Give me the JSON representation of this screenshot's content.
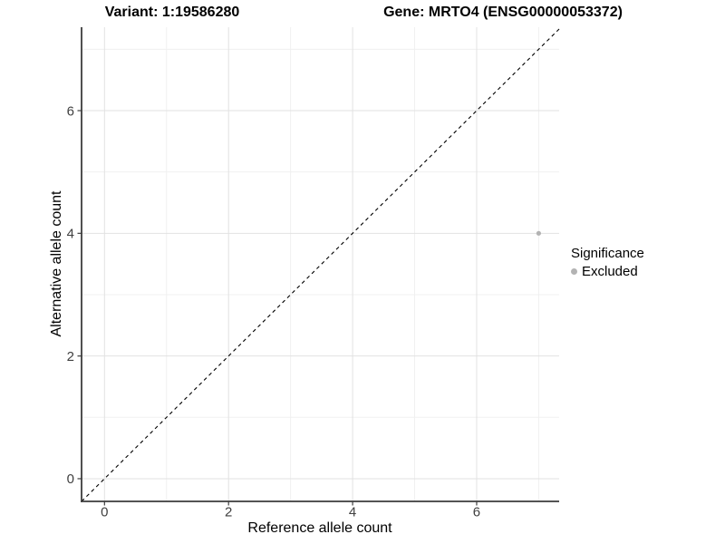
{
  "figure": {
    "title_left": "Variant: 1:19586280",
    "title_right": "Gene: MRTO4 (ENSG00000053372)"
  },
  "chart_data": {
    "type": "scatter",
    "title": "Variant: 1:19586280   Gene: MRTO4 (ENSG00000053372)",
    "xlabel": "Reference allele count",
    "ylabel": "Alternative allele count",
    "xlim": [
      -0.37,
      7.33
    ],
    "ylim": [
      -0.37,
      7.36
    ],
    "x_ticks": [
      0,
      2,
      4,
      6
    ],
    "y_ticks": [
      0,
      2,
      4,
      6
    ],
    "x_minor_ticks": [
      1,
      3,
      5,
      7
    ],
    "y_minor_ticks": [
      1,
      3,
      5,
      7
    ],
    "grid": "major+minor",
    "identity_line": {
      "type": "abline",
      "slope": 1,
      "intercept": 0,
      "style": "dashed",
      "color": "#000000"
    },
    "series": [
      {
        "name": "Excluded",
        "color": "#b3b3b3",
        "points": [
          {
            "x": 7,
            "y": 4
          }
        ]
      }
    ],
    "legend": {
      "title": "Significance",
      "position": "right",
      "items": [
        {
          "label": "Excluded",
          "color": "#b3b3b3"
        }
      ]
    }
  },
  "colors": {
    "background": "#ffffff",
    "grid_major": "#e2e2e2",
    "grid_minor": "#f0f0f0",
    "axis_line": "#3c3c3c",
    "tick_mark": "#3c3c3c",
    "tick_label": "#404040",
    "text": "#000000"
  }
}
